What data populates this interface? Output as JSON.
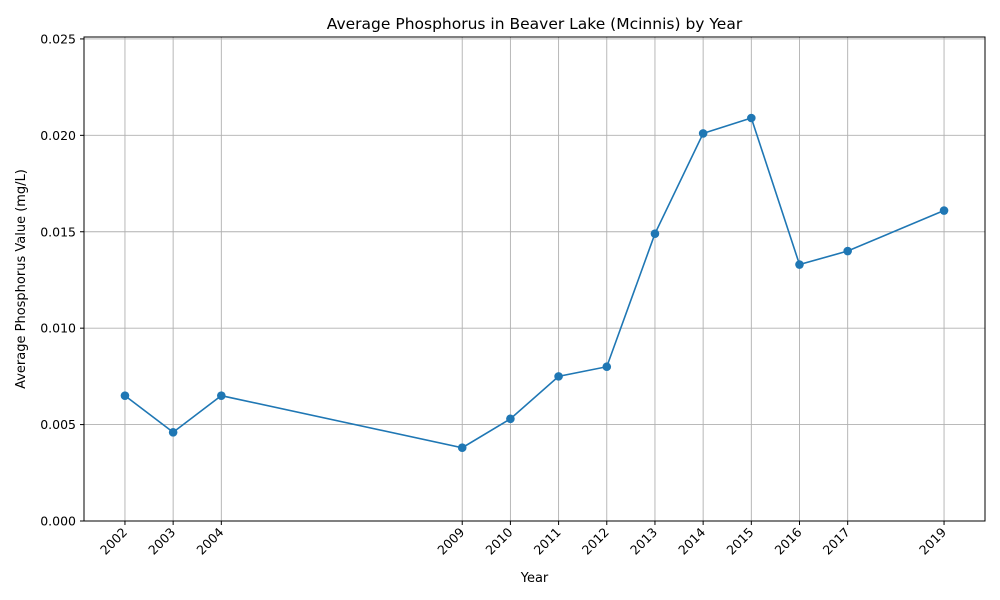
{
  "chart_data": {
    "type": "line",
    "title": "Average Phosphorus in Beaver Lake (Mcinnis) by Year",
    "xlabel": "Year",
    "ylabel": "Average Phosphorus Value (mg/L)",
    "x": [
      2002,
      2003,
      2004,
      2009,
      2010,
      2011,
      2012,
      2013,
      2014,
      2015,
      2016,
      2017,
      2019
    ],
    "y": [
      0.0065,
      0.0046,
      0.0065,
      0.0038,
      0.0053,
      0.0075,
      0.008,
      0.0149,
      0.0201,
      0.0209,
      0.0133,
      0.014,
      0.0161
    ],
    "xlim": [
      2001.15,
      2019.85
    ],
    "ylim": [
      0,
      0.0251
    ],
    "yticks": [
      "0.000",
      "0.005",
      "0.010",
      "0.015",
      "0.020",
      "0.025"
    ],
    "grid": true,
    "color": "#1f77b4"
  }
}
